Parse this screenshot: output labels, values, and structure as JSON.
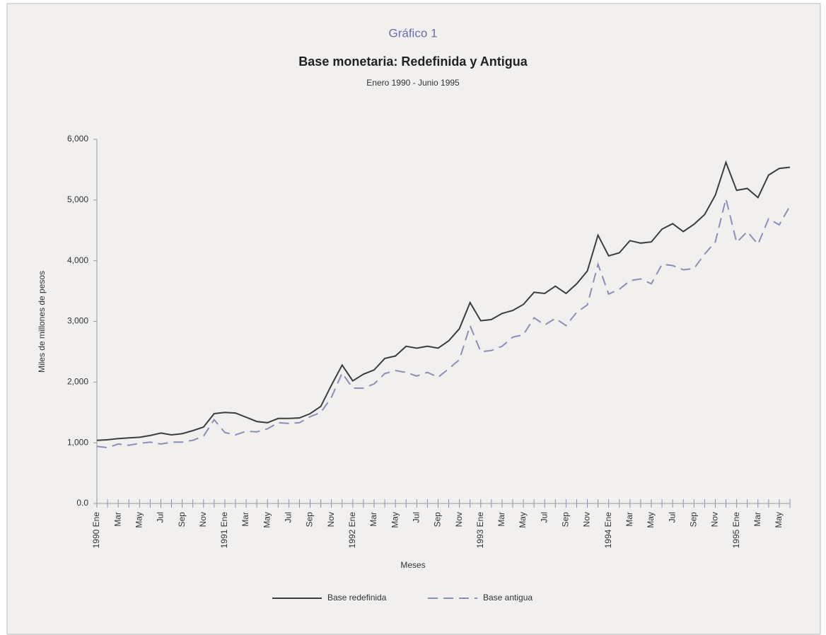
{
  "chart_data": {
    "type": "line",
    "label": "Gráfico 1",
    "title": "Base monetaria: Redefinida y Antigua",
    "subtitle": "Enero 1990 - Junio 1995",
    "y_label": "Miles de millones de pesos",
    "x_label": "Meses",
    "legend": "bottom",
    "categories": [
      "1990 Ene",
      null,
      "Mar",
      null,
      "May",
      null,
      "Jul",
      null,
      "Sep",
      null,
      "Nov",
      null,
      "1991 Ene",
      null,
      "Mar",
      null,
      "May",
      null,
      "Jul",
      null,
      "Sep",
      null,
      "Nov",
      null,
      "1992 Ene",
      null,
      "Mar",
      null,
      "May",
      null,
      "Jul",
      null,
      "Sep",
      null,
      "Nov",
      null,
      "1993 Ene",
      null,
      "Mar",
      null,
      "May",
      null,
      "Jul",
      null,
      "Sep",
      null,
      "Nov",
      null,
      "1994 Ene",
      null,
      "Mar",
      null,
      "May",
      null,
      "Jul",
      null,
      "Sep",
      null,
      "Nov",
      null,
      "1995 Ene",
      null,
      "Mar",
      null,
      "May",
      null
    ],
    "series": [
      {
        "name": "Base redefinida",
        "color": "#3d3d3d",
        "dash": "solid",
        "values": [
          1040,
          1050,
          1070,
          1080,
          1090,
          1120,
          1160,
          1130,
          1150,
          1200,
          1260,
          1480,
          1500,
          1490,
          1420,
          1350,
          1330,
          1400,
          1400,
          1410,
          1480,
          1600,
          1950,
          2280,
          2020,
          2130,
          2200,
          2390,
          2430,
          2590,
          2560,
          2590,
          2560,
          2680,
          2880,
          3310,
          3010,
          3030,
          3130,
          3180,
          3280,
          3480,
          3460,
          3580,
          3460,
          3620,
          3830,
          4420,
          4080,
          4130,
          4330,
          4290,
          4310,
          4520,
          4610,
          4480,
          4600,
          4760,
          5080,
          5620,
          5160,
          5190,
          5040,
          5410,
          5520,
          5540
        ]
      },
      {
        "name": "Base antigua",
        "color": "#8a8fba",
        "dash": "dashed",
        "values": [
          940,
          920,
          980,
          960,
          990,
          1010,
          980,
          1010,
          1010,
          1040,
          1110,
          1380,
          1170,
          1130,
          1190,
          1180,
          1230,
          1330,
          1320,
          1330,
          1430,
          1500,
          1750,
          2150,
          1900,
          1900,
          1970,
          2140,
          2190,
          2160,
          2100,
          2160,
          2080,
          2220,
          2370,
          2930,
          2500,
          2520,
          2590,
          2740,
          2780,
          3060,
          2940,
          3050,
          2930,
          3150,
          3270,
          3940,
          3450,
          3530,
          3670,
          3700,
          3620,
          3940,
          3920,
          3850,
          3870,
          4110,
          4310,
          5020,
          4300,
          4480,
          4270,
          4690,
          4590,
          4900
        ]
      }
    ],
    "ylim": [
      0,
      6000
    ],
    "yticks": [
      {
        "value": 0,
        "label": "0.0"
      },
      {
        "value": 1000,
        "label": "1,000"
      },
      {
        "value": 2000,
        "label": "2,000"
      },
      {
        "value": 3000,
        "label": "3,000"
      },
      {
        "value": 4000,
        "label": "4,000"
      },
      {
        "value": 5000,
        "label": "5,000"
      },
      {
        "value": 6000,
        "label": "6,000"
      }
    ],
    "grid": false
  }
}
